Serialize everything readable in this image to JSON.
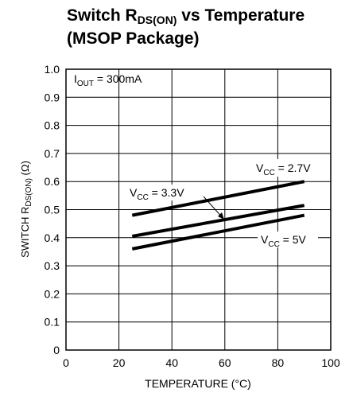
{
  "chart_data": {
    "type": "line",
    "title": {
      "line1_prefix": "Switch R",
      "line1_sub": "DS(ON)",
      "line1_suffix": " vs Temperature",
      "line2": "(MSOP Package)"
    },
    "xlabel": "TEMPERATURE (°C)",
    "ylabel": {
      "prefix": "SWITCH R",
      "sub": "DS(ON)",
      "suffix": " (Ω)"
    },
    "xlim": [
      0,
      100
    ],
    "ylim": [
      0,
      1.0
    ],
    "xticks": [
      0,
      20,
      40,
      60,
      80,
      100
    ],
    "yticks": [
      0,
      0.1,
      0.2,
      0.3,
      0.4,
      0.5,
      0.6,
      0.7,
      0.8,
      0.9,
      1.0
    ],
    "xtick_labels": [
      "0",
      "20",
      "40",
      "60",
      "80",
      "100"
    ],
    "ytick_labels": [
      "0",
      "0.1",
      "0.2",
      "0.3",
      "0.4",
      "0.5",
      "0.6",
      "0.7",
      "0.8",
      "0.9",
      "1.0"
    ],
    "grid": true,
    "annotation": {
      "prefix": "I",
      "sub": "OUT",
      "suffix": " = 300mA"
    },
    "series": [
      {
        "name": {
          "prefix": "V",
          "sub": "CC",
          "suffix": " = 2.7V"
        },
        "x": [
          25,
          90
        ],
        "y": [
          0.48,
          0.6
        ]
      },
      {
        "name": {
          "prefix": "V",
          "sub": "CC",
          "suffix": " = 3.3V"
        },
        "x": [
          25,
          90
        ],
        "y": [
          0.405,
          0.515
        ]
      },
      {
        "name": {
          "prefix": "V",
          "sub": "CC",
          "suffix": " = 5V"
        },
        "x": [
          25,
          90
        ],
        "y": [
          0.36,
          0.48
        ]
      }
    ]
  },
  "colors": {
    "line": "#000000",
    "grid": "#000000"
  }
}
